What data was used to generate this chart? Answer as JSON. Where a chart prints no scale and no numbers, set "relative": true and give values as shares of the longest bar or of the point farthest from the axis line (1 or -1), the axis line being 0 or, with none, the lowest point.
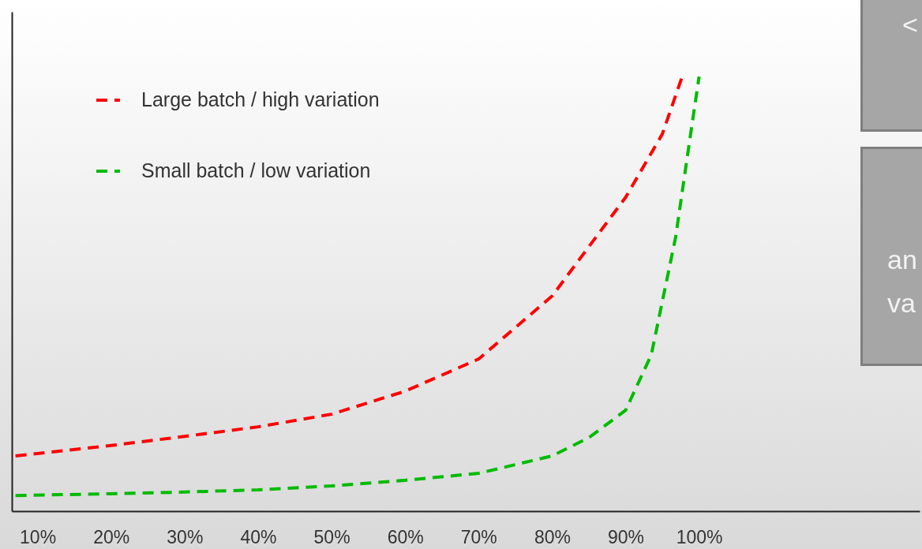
{
  "chart_data": {
    "type": "line",
    "relative": true,
    "xlim": [
      6.5,
      130
    ],
    "xticks": [
      {
        "value": 10,
        "label": "10%"
      },
      {
        "value": 20,
        "label": "20%"
      },
      {
        "value": 30,
        "label": "30%"
      },
      {
        "value": 40,
        "label": "40%"
      },
      {
        "value": 50,
        "label": "50%"
      },
      {
        "value": 60,
        "label": "60%"
      },
      {
        "value": 70,
        "label": "70%"
      },
      {
        "value": 80,
        "label": "80%"
      },
      {
        "value": 90,
        "label": "90%"
      },
      {
        "value": 100,
        "label": "100%"
      }
    ],
    "series": [
      {
        "name": "Large batch / high variation",
        "color": "#ff0000",
        "x": [
          7,
          20,
          30,
          40,
          50,
          60,
          70,
          80,
          90,
          95,
          97.7
        ],
        "values": [
          0.127,
          0.151,
          0.172,
          0.194,
          0.223,
          0.276,
          0.35,
          0.495,
          0.722,
          0.868,
          1
        ]
      },
      {
        "name": "Small batch / low variation",
        "color": "#00bb00",
        "x": [
          7,
          20,
          30,
          40,
          50,
          60,
          70,
          80,
          85,
          90,
          93.5,
          96.8,
          99,
          100
        ],
        "values": [
          0.036,
          0.04,
          0.044,
          0.049,
          0.058,
          0.071,
          0.087,
          0.127,
          0.169,
          0.232,
          0.36,
          0.63,
          0.886,
          1
        ]
      }
    ],
    "line_style": "dashed",
    "marker": "none",
    "grid": false,
    "legend": "top left",
    "annotations": [
      "<",
      "an",
      "va"
    ]
  }
}
